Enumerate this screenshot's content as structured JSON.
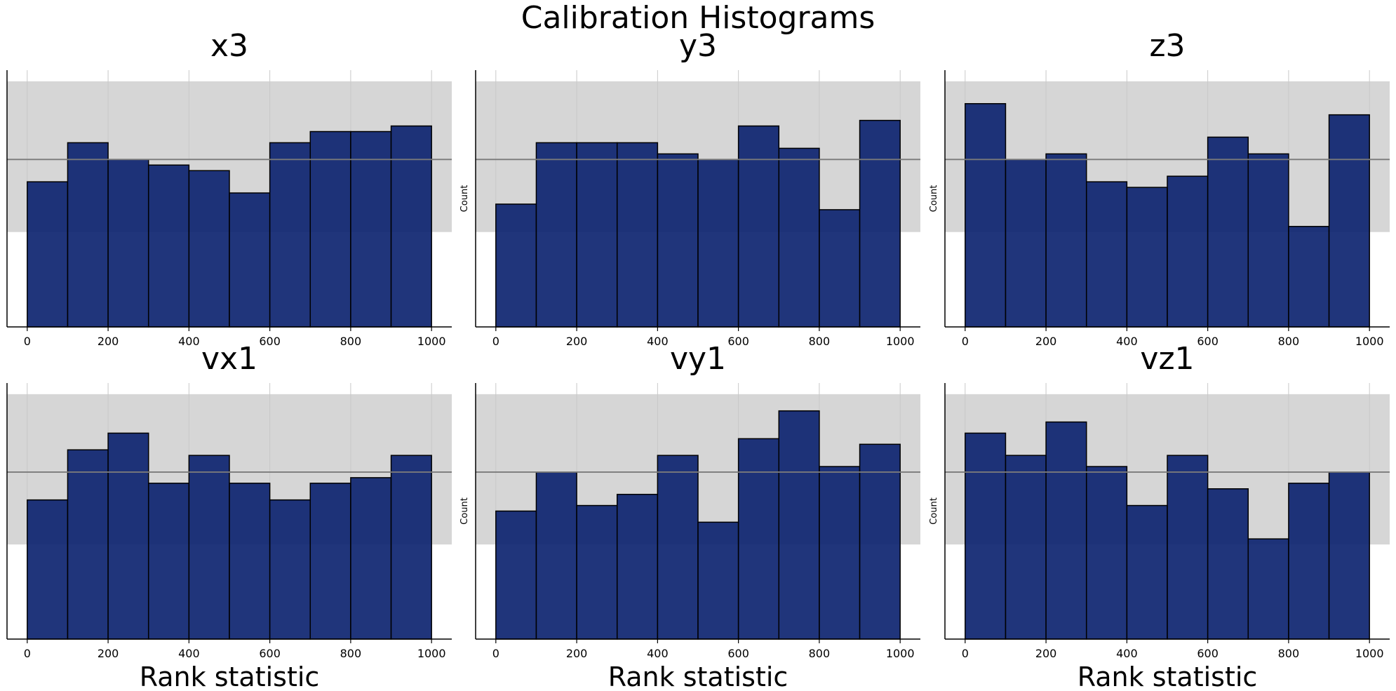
{
  "figure": {
    "title": "Calibration Histograms"
  },
  "chart_data": [
    {
      "type": "bar",
      "title": "x3",
      "xlabel": "",
      "ylabel": "",
      "bin_edges": [
        0,
        100,
        200,
        300,
        400,
        500,
        600,
        700,
        800,
        900,
        1000
      ],
      "values": [
        26,
        33,
        30,
        29,
        28,
        24,
        33,
        35,
        35,
        36
      ],
      "xticks": [
        0,
        200,
        400,
        600,
        800,
        1000
      ],
      "xlim": [
        -50,
        1050
      ],
      "ylim": [
        0,
        46
      ],
      "expected_count": 30,
      "confidence_band": [
        17,
        44
      ],
      "grid": "vertical"
    },
    {
      "type": "bar",
      "title": "y3",
      "xlabel": "",
      "ylabel": "Count",
      "bin_edges": [
        0,
        100,
        200,
        300,
        400,
        500,
        600,
        700,
        800,
        900,
        1000
      ],
      "values": [
        22,
        33,
        33,
        33,
        31,
        30,
        36,
        32,
        21,
        37
      ],
      "xticks": [
        0,
        200,
        400,
        600,
        800,
        1000
      ],
      "xlim": [
        -50,
        1050
      ],
      "ylim": [
        0,
        46
      ],
      "expected_count": 30,
      "confidence_band": [
        17,
        44
      ],
      "grid": "vertical"
    },
    {
      "type": "bar",
      "title": "z3",
      "xlabel": "",
      "ylabel": "Count",
      "bin_edges": [
        0,
        100,
        200,
        300,
        400,
        500,
        600,
        700,
        800,
        900,
        1000
      ],
      "values": [
        40,
        30,
        31,
        26,
        25,
        27,
        34,
        31,
        18,
        38
      ],
      "xticks": [
        0,
        200,
        400,
        600,
        800,
        1000
      ],
      "xlim": [
        -50,
        1050
      ],
      "ylim": [
        0,
        46
      ],
      "expected_count": 30,
      "confidence_band": [
        17,
        44
      ],
      "grid": "vertical"
    },
    {
      "type": "bar",
      "title": "vx1",
      "xlabel": "Rank statistic",
      "ylabel": "",
      "bin_edges": [
        0,
        100,
        200,
        300,
        400,
        500,
        600,
        700,
        800,
        900,
        1000
      ],
      "values": [
        25,
        34,
        37,
        28,
        33,
        28,
        25,
        28,
        29,
        33
      ],
      "xticks": [
        0,
        200,
        400,
        600,
        800,
        1000
      ],
      "xlim": [
        -50,
        1050
      ],
      "ylim": [
        0,
        46
      ],
      "expected_count": 30,
      "confidence_band": [
        17,
        44
      ],
      "grid": "vertical"
    },
    {
      "type": "bar",
      "title": "vy1",
      "xlabel": "Rank statistic",
      "ylabel": "Count",
      "bin_edges": [
        0,
        100,
        200,
        300,
        400,
        500,
        600,
        700,
        800,
        900,
        1000
      ],
      "values": [
        23,
        30,
        24,
        26,
        33,
        21,
        36,
        41,
        31,
        35
      ],
      "xticks": [
        0,
        200,
        400,
        600,
        800,
        1000
      ],
      "xlim": [
        -50,
        1050
      ],
      "ylim": [
        0,
        46
      ],
      "expected_count": 30,
      "confidence_band": [
        17,
        44
      ],
      "grid": "vertical"
    },
    {
      "type": "bar",
      "title": "vz1",
      "xlabel": "Rank statistic",
      "ylabel": "Count",
      "bin_edges": [
        0,
        100,
        200,
        300,
        400,
        500,
        600,
        700,
        800,
        900,
        1000
      ],
      "values": [
        37,
        33,
        39,
        31,
        24,
        33,
        27,
        18,
        28,
        30
      ],
      "xticks": [
        0,
        200,
        400,
        600,
        800,
        1000
      ],
      "xlim": [
        -50,
        1050
      ],
      "ylim": [
        0,
        46
      ],
      "expected_count": 30,
      "confidence_band": [
        17,
        44
      ],
      "grid": "vertical"
    }
  ],
  "colors": {
    "bar_fill": "#0d2470",
    "bar_edge": "#000000",
    "band": "#d6d6d6",
    "expected_line": "#7a7a7a",
    "grid": "#c8c8c8",
    "axis": "#000000"
  }
}
